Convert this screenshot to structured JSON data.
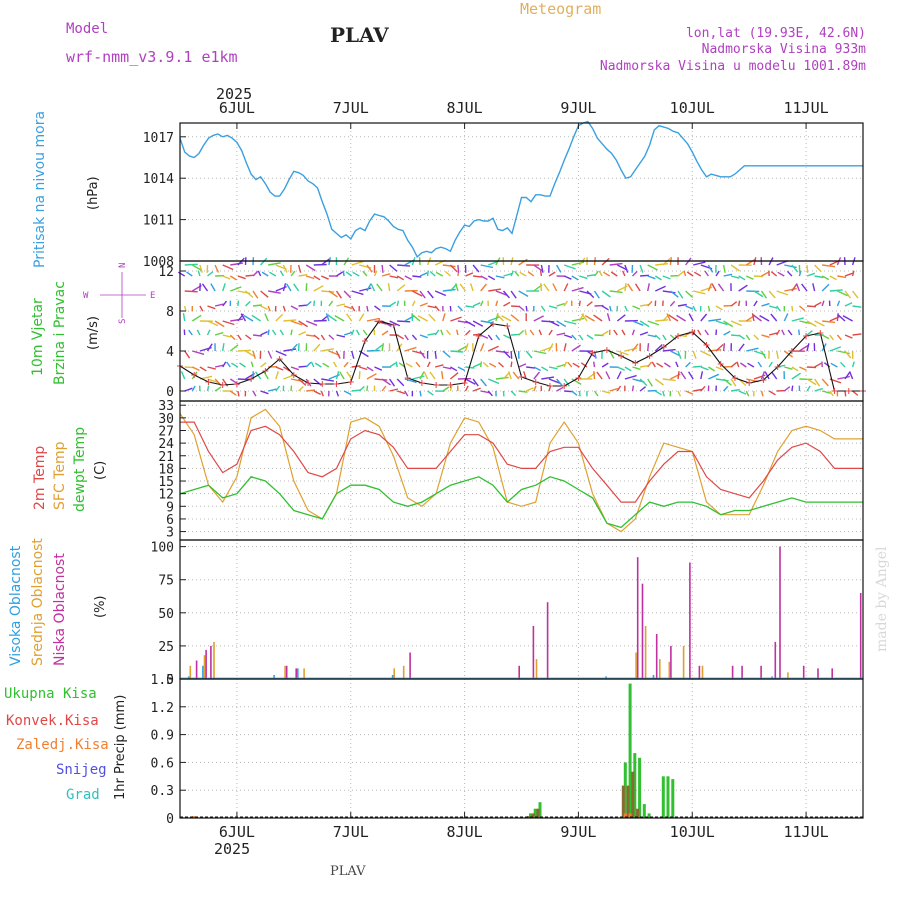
{
  "header": {
    "model_label": "Model",
    "model_name": "wrf-nmm_v3.9.1  e1km",
    "title": "PLAV",
    "meteogram_label": "Meteogram",
    "location": "lon,lat (19.93E, 42.6N)",
    "elevation": "Nadmorska Visina 933m",
    "model_elevation": "Nadmorska Visina u modelu 1001.89m",
    "footer_title": "PLAV",
    "watermark": "made by Angel"
  },
  "time_axis": {
    "year": "2025",
    "days": [
      "6JUL",
      "7JUL",
      "8JUL",
      "9JUL",
      "10JUL",
      "11JUL"
    ],
    "hours_range": [
      0,
      144
    ],
    "day_positions_hours": [
      12,
      36,
      60,
      84,
      108,
      132
    ]
  },
  "panels": {
    "pressure": {
      "label": "Pritisak na nivou mora",
      "unit": "(hPa)",
      "ticks": [
        "1008",
        "1011",
        "1014",
        "1017"
      ],
      "ylim": [
        1008,
        1018
      ]
    },
    "wind": {
      "label_line1": "10m Vjetar",
      "label_line2": "Brzina i Pravac",
      "unit": "(m/s)",
      "ticks": [
        "0",
        "4",
        "8",
        "12"
      ],
      "ylim": [
        -1,
        13
      ],
      "compass": [
        "N",
        "W",
        "E",
        "S"
      ]
    },
    "temperature": {
      "label_2m": "2m Temp",
      "label_sfc": "SFC Temp",
      "label_dewpt": "dewpt Temp",
      "unit": "(C)",
      "ticks": [
        "3",
        "6",
        "9",
        "12",
        "15",
        "18",
        "21",
        "24",
        "27",
        "30",
        "33"
      ],
      "ylim": [
        1,
        34
      ]
    },
    "clouds": {
      "label_high": "Visoka Oblacnost",
      "label_mid": "Srednja Oblacnost",
      "label_low": "Niska Oblacnost",
      "unit": "(%)",
      "ticks": [
        "0",
        "25",
        "50",
        "75",
        "100"
      ],
      "ylim": [
        0,
        105
      ]
    },
    "precip": {
      "label_total": "Ukupna Kisa",
      "label_conv": "Konvek.Kisa",
      "label_frozen": "Zaledj.Kisa",
      "label_snow": "Snijeg",
      "label_hail": "Grad",
      "unit": "1hr Precip (mm)",
      "ticks": [
        "0",
        "0.3",
        "0.6",
        "0.9",
        "1.2",
        "1.5"
      ],
      "ylim": [
        0,
        1.5
      ]
    }
  },
  "colors": {
    "pressure": "#3aa0e0",
    "temp2m": "#e04848",
    "sfc": "#e0a030",
    "dewpt": "#30c030",
    "high_cloud": "#30a0e0",
    "mid_cloud": "#e0a030",
    "low_cloud": "#c030a0",
    "total_precip": "#30c030",
    "conv_precip": "#e04848",
    "frozen_precip": "#f08030",
    "snow": "#5050e0",
    "hail": "#30c0c0",
    "model_text": "#b040c0",
    "meteogram_text": "#e0b060"
  },
  "chart_data": [
    {
      "type": "line",
      "name": "pressure",
      "x": [
        0,
        1,
        2,
        3,
        4,
        5,
        6,
        7,
        8,
        9,
        10,
        11,
        12,
        13,
        14,
        15,
        16,
        17,
        18,
        19,
        20,
        21,
        22,
        23,
        24,
        25,
        26,
        27,
        28,
        29,
        30,
        31,
        32,
        33,
        34,
        35,
        36,
        37,
        38,
        39,
        40,
        41,
        42,
        43,
        44,
        45,
        46,
        47,
        48,
        49,
        50,
        51,
        52,
        53,
        54,
        55,
        56,
        57,
        58,
        59,
        60,
        61,
        62,
        63,
        64,
        65,
        66,
        67,
        68,
        69,
        70,
        71,
        72,
        73,
        74,
        75,
        76,
        77,
        78,
        79,
        80,
        81,
        82,
        83,
        84,
        85,
        86,
        87,
        88,
        89,
        90,
        91,
        92,
        93,
        94,
        95,
        96,
        97,
        98,
        99,
        100,
        101,
        102,
        103,
        104,
        105,
        106,
        107,
        108,
        109,
        110,
        111,
        112,
        113,
        114,
        115,
        116,
        117,
        118,
        119,
        120,
        121,
        122,
        123,
        124,
        125,
        126,
        127,
        128,
        129,
        130,
        131,
        132,
        133,
        134,
        135,
        136,
        137,
        138,
        139,
        140,
        141,
        142,
        143,
        144
      ],
      "y": [
        1016.9,
        1015.9,
        1015.6,
        1015.5,
        1015.8,
        1016.4,
        1016.9,
        1017.1,
        1017.2,
        1017.0,
        1017.1,
        1016.9,
        1016.6,
        1016.0,
        1015.1,
        1014.3,
        1013.9,
        1014.1,
        1013.6,
        1013.0,
        1012.7,
        1012.7,
        1013.2,
        1013.9,
        1014.5,
        1014.4,
        1014.2,
        1013.8,
        1013.6,
        1013.3,
        1012.3,
        1011.4,
        1010.3,
        1010.0,
        1009.7,
        1009.9,
        1009.6,
        1010.2,
        1010.4,
        1010.2,
        1010.9,
        1011.4,
        1011.3,
        1011.2,
        1010.9,
        1010.5,
        1010.3,
        1010.2,
        1009.5,
        1009.0,
        1008.3,
        1008.6,
        1008.7,
        1008.6,
        1008.9,
        1009.0,
        1008.9,
        1008.7,
        1009.5,
        1010.1,
        1010.6,
        1010.5,
        1010.9,
        1011.0,
        1010.9,
        1010.9,
        1011.1,
        1010.3,
        1010.2,
        1010.4,
        1010.0,
        1011.3,
        1012.6,
        1012.6,
        1012.3,
        1012.8,
        1012.8,
        1012.7,
        1012.7,
        1013.6,
        1014.4,
        1015.3,
        1016.1,
        1017.0,
        1017.8,
        1018.0,
        1018.1,
        1017.6,
        1016.9,
        1016.5,
        1016.1,
        1015.8,
        1015.3,
        1014.6,
        1014.0,
        1014.1,
        1014.6,
        1015.1,
        1015.6,
        1016.4,
        1017.5,
        1017.8,
        1017.7,
        1017.6,
        1017.4,
        1017.3,
        1016.9,
        1016.5,
        1015.9,
        1015.2,
        1014.6,
        1014.1,
        1014.3,
        1014.2,
        1014.1,
        1014.1,
        1014.1,
        1014.3,
        1014.6,
        1014.9,
        1014.9,
        1014.9,
        1014.9,
        1014.9,
        1014.9,
        1014.9,
        1014.9,
        1014.9,
        1014.9,
        1014.9,
        1014.9,
        1014.9,
        1014.9,
        1014.9,
        1014.9,
        1014.9,
        1014.9,
        1014.9,
        1014.9,
        1014.9,
        1014.9,
        1014.9,
        1014.9,
        1014.9,
        1014.9
      ]
    },
    {
      "type": "line",
      "name": "wind_speed",
      "x": [
        0,
        3,
        6,
        9,
        12,
        15,
        18,
        21,
        24,
        27,
        30,
        33,
        36,
        39,
        42,
        45,
        48,
        51,
        54,
        57,
        60,
        63,
        66,
        69,
        72,
        75,
        78,
        81,
        84,
        87,
        90,
        93,
        96,
        99,
        102,
        105,
        108,
        111,
        114,
        117,
        120,
        123,
        126,
        129,
        132,
        135,
        138,
        141,
        144
      ],
      "y": [
        2.5,
        1.6,
        0.9,
        0.6,
        0.7,
        1.2,
        2.0,
        3.2,
        1.6,
        0.8,
        0.7,
        0.7,
        0.9,
        5.0,
        7.0,
        6.6,
        1.3,
        0.8,
        0.6,
        0.6,
        0.8,
        5.5,
        6.7,
        6.5,
        1.4,
        0.9,
        0.5,
        0.5,
        1.3,
        3.8,
        4.1,
        3.5,
        2.8,
        3.5,
        4.4,
        5.5,
        5.9,
        4.6,
        2.7,
        1.3,
        0.8,
        1.1,
        2.4,
        4.0,
        5.5,
        5.8,
        0.0,
        0.0,
        0.0
      ]
    },
    {
      "type": "line",
      "name": "temp_2m",
      "x": [
        0,
        3,
        6,
        9,
        12,
        15,
        18,
        21,
        24,
        27,
        30,
        33,
        36,
        39,
        42,
        45,
        48,
        51,
        54,
        57,
        60,
        63,
        66,
        69,
        72,
        75,
        78,
        81,
        84,
        87,
        90,
        93,
        96,
        99,
        102,
        105,
        108,
        111,
        114,
        117,
        120,
        123,
        126,
        129,
        132,
        135,
        138,
        141,
        144
      ],
      "y": [
        29,
        29,
        22,
        17,
        19,
        27,
        28,
        26,
        22,
        17,
        16,
        18,
        25,
        27,
        26,
        23,
        18,
        18,
        18,
        22,
        26,
        26,
        24,
        19,
        18,
        18,
        22,
        23,
        23,
        18,
        14,
        10,
        10,
        15,
        19,
        22,
        22,
        16,
        13,
        12,
        11,
        15,
        20,
        23,
        24,
        22,
        18,
        18,
        18
      ]
    },
    {
      "type": "line",
      "name": "sfc_temp",
      "x": [
        0,
        3,
        6,
        9,
        12,
        15,
        18,
        21,
        24,
        27,
        30,
        33,
        36,
        39,
        42,
        45,
        48,
        51,
        54,
        57,
        60,
        63,
        66,
        69,
        72,
        75,
        78,
        81,
        84,
        87,
        90,
        93,
        96,
        99,
        102,
        105,
        108,
        111,
        114,
        117,
        120,
        123,
        126,
        129,
        132,
        135,
        138,
        141,
        144
      ],
      "y": [
        31,
        26,
        14,
        10,
        16,
        30,
        32,
        28,
        15,
        8,
        6,
        12,
        29,
        30,
        28,
        21,
        11,
        9,
        12,
        24,
        30,
        29,
        23,
        10,
        9,
        10,
        24,
        29,
        24,
        12,
        5,
        3,
        6,
        16,
        24,
        23,
        22,
        10,
        7,
        7,
        7,
        14,
        22,
        27,
        28,
        27,
        25,
        25,
        25
      ]
    },
    {
      "type": "line",
      "name": "dewpt_temp",
      "x": [
        0,
        3,
        6,
        9,
        12,
        15,
        18,
        21,
        24,
        27,
        30,
        33,
        36,
        39,
        42,
        45,
        48,
        51,
        54,
        57,
        60,
        63,
        66,
        69,
        72,
        75,
        78,
        81,
        84,
        87,
        90,
        93,
        96,
        99,
        102,
        105,
        108,
        111,
        114,
        117,
        120,
        123,
        126,
        129,
        132,
        135,
        138,
        141,
        144
      ],
      "y": [
        12,
        13,
        14,
        11,
        12,
        16,
        15,
        12,
        8,
        7,
        6,
        12,
        14,
        14,
        13,
        10,
        9,
        10,
        12,
        14,
        15,
        16,
        14,
        10,
        13,
        14,
        16,
        15,
        13,
        11,
        5,
        4,
        7,
        10,
        9,
        10,
        10,
        9,
        7,
        8,
        8,
        9,
        10,
        11,
        10,
        10,
        10,
        10,
        10
      ]
    },
    {
      "type": "bar",
      "name": "cloud_cover",
      "series": [
        {
          "name": "Visoka Oblacnost",
          "x": [
            2,
            5,
            20,
            25,
            45,
            90,
            100,
            125
          ],
          "values": [
            2,
            10,
            3,
            8,
            3,
            2,
            3,
            2
          ]
        },
        {
          "name": "Srednja Oblacnost",
          "x": [
            2,
            5,
            7,
            22,
            26,
            45,
            47,
            75,
            96,
            98,
            101,
            103,
            106,
            110,
            128
          ],
          "values": [
            10,
            18,
            28,
            10,
            8,
            8,
            10,
            15,
            20,
            40,
            15,
            13,
            25,
            10,
            5
          ]
        },
        {
          "name": "Niska Oblacnost",
          "x": [
            3,
            5,
            6,
            22,
            24,
            48,
            71,
            74,
            77,
            96,
            97,
            100,
            103,
            107,
            109,
            116,
            118,
            122,
            125,
            126,
            131,
            134,
            137,
            143
          ],
          "values": [
            14,
            22,
            25,
            10,
            8,
            20,
            10,
            40,
            58,
            92,
            72,
            34,
            25,
            88,
            10,
            10,
            10,
            10,
            28,
            100,
            10,
            8,
            8,
            65
          ]
        }
      ]
    },
    {
      "type": "bar",
      "name": "precip",
      "series": [
        {
          "name": "Ukupna Kisa",
          "x": [
            74,
            75,
            76,
            94,
            95,
            96,
            97,
            98,
            99,
            102,
            103,
            104
          ],
          "values": [
            0.05,
            0.1,
            0.17,
            0.6,
            1.45,
            0.7,
            0.65,
            0.15,
            0.05,
            0.45,
            0.45,
            0.42
          ]
        },
        {
          "name": "Konvek.Kisa",
          "x": [
            74,
            75,
            76,
            94,
            95,
            96,
            97
          ],
          "values": [
            0.02,
            0.05,
            0.1,
            0.35,
            0.35,
            0.5,
            0.1
          ]
        },
        {
          "name": "Zaledj.Kisa",
          "x": [
            3,
            94,
            95
          ],
          "values": [
            0.02,
            0.05,
            0.05
          ]
        },
        {
          "name": "Snijeg",
          "x": [],
          "values": []
        },
        {
          "name": "Grad",
          "x": [],
          "values": []
        }
      ]
    }
  ]
}
